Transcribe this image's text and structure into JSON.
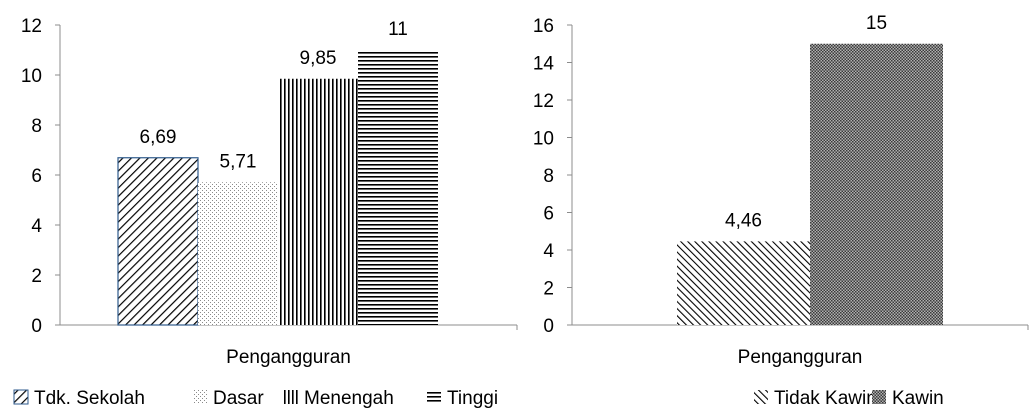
{
  "chart_data": [
    {
      "type": "bar",
      "categories": [
        "Pengangguran"
      ],
      "series": [
        {
          "name": "Tdk. Sekolah",
          "values": [
            6.69
          ],
          "label": "6,69",
          "pattern": "diag-dense",
          "border": "#2e5a8c"
        },
        {
          "name": "Dasar",
          "values": [
            5.71
          ],
          "label": "5,71",
          "pattern": "dots"
        },
        {
          "name": "Menengah",
          "values": [
            9.85
          ],
          "label": "9,85",
          "pattern": "vertical"
        },
        {
          "name": "Tinggi",
          "values": [
            11
          ],
          "label": "11",
          "pattern": "horizontal"
        }
      ],
      "ylim": [
        0,
        12
      ],
      "yticks": [
        "0",
        "2",
        "4",
        "6",
        "8",
        "10",
        "12"
      ],
      "ytick_values": [
        0,
        2,
        4,
        6,
        8,
        10,
        12
      ],
      "xlabel": "Pengangguran",
      "legend_position": "bottom",
      "grid": false
    },
    {
      "type": "bar",
      "categories": [
        "Pengangguran"
      ],
      "series": [
        {
          "name": "Tidak Kawin",
          "values": [
            4.46
          ],
          "label": "4,46",
          "pattern": "diag-wide"
        },
        {
          "name": "Kawin",
          "values": [
            15
          ],
          "label": "15",
          "pattern": "dense-dots"
        }
      ],
      "ylim": [
        0,
        16
      ],
      "yticks": [
        "0",
        "2",
        "4",
        "6",
        "8",
        "10",
        "12",
        "14",
        "16"
      ],
      "ytick_values": [
        0,
        2,
        4,
        6,
        8,
        10,
        12,
        14,
        16
      ],
      "xlabel": "Pengangguran",
      "legend_position": "bottom",
      "grid": false
    }
  ]
}
